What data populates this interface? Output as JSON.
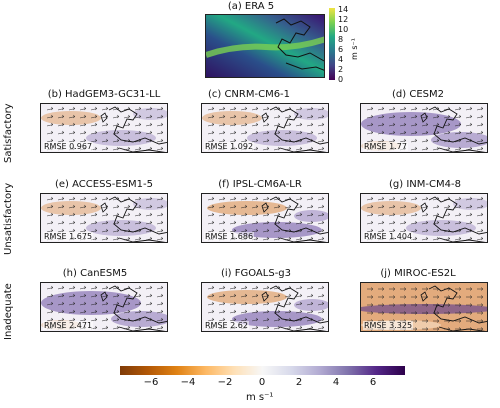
{
  "era": {
    "title": "(a) ERA 5",
    "unit": "m s⁻¹",
    "ticks": [
      "14",
      "12",
      "10",
      "8",
      "6",
      "4",
      "2",
      "0"
    ]
  },
  "rows": [
    {
      "label": "Satisfactory",
      "panels": [
        {
          "title": "(b) HadGEM3-GC31-LL",
          "rmse": "RMSE 0.967",
          "pattern": "mild"
        },
        {
          "title": "(c) CNRM-CM6-1",
          "rmse": "RMSE 1.092",
          "pattern": "mild"
        },
        {
          "title": "(d) CESM2",
          "rmse": "RMSE 1.77",
          "pattern": "purple"
        }
      ]
    },
    {
      "label": "Unsatisfactory",
      "panels": [
        {
          "title": "(e) ACCESS-ESM1-5",
          "rmse": "RMSE 1.675",
          "pattern": "mild"
        },
        {
          "title": "(f) IPSL-CM6A-LR",
          "rmse": "RMSE 1.686",
          "pattern": "mixed"
        },
        {
          "title": "(g) INM-CM4-8",
          "rmse": "RMSE 1.404",
          "pattern": "mild"
        }
      ]
    },
    {
      "label": "Inadequate",
      "panels": [
        {
          "title": "(h) CanESM5",
          "rmse": "RMSE 2.471",
          "pattern": "purple"
        },
        {
          "title": "(i) FGOALS-g3",
          "rmse": "RMSE 2.62",
          "pattern": "mixed"
        },
        {
          "title": "(j) MIROC-ES2L",
          "rmse": "RMSE 3.325",
          "pattern": "orange"
        }
      ]
    }
  ],
  "colorbar": {
    "ticks": [
      "−6",
      "−4",
      "−2",
      "0",
      "2",
      "4",
      "6"
    ],
    "unit": "m s⁻¹"
  },
  "colors": {
    "orange": "#d5731a",
    "purple": "#4b2b8f",
    "era_low": "#3b0f70",
    "era_high": "#f0e442"
  }
}
